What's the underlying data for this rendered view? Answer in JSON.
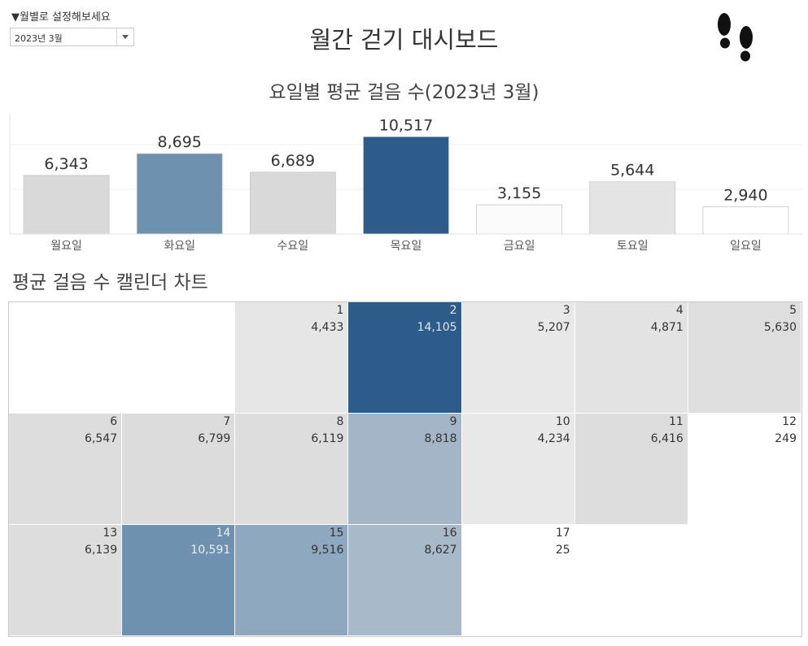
{
  "filter": {
    "label": "▼월별로 설정해보세요",
    "selected": "2023년 3월"
  },
  "dashboard": {
    "title": "월간 걷기 대시보드",
    "icon": "footprints-icon"
  },
  "chart_data": [
    {
      "type": "bar",
      "title": "요일별 평균 걸음 수(2023년 3월)",
      "categories": [
        "월요일",
        "화요일",
        "수요일",
        "목요일",
        "금요일",
        "토요일",
        "일요일"
      ],
      "values": [
        6343,
        8695,
        6689,
        10517,
        3155,
        5644,
        2940
      ],
      "value_labels": [
        "6,343",
        "8,695",
        "6,689",
        "10,517",
        "3,155",
        "5,644",
        "2,940"
      ],
      "colors": [
        "#d9d9d9",
        "#6f91b0",
        "#d9d9d9",
        "#2d5b8a",
        "#fbfbfb",
        "#e4e4e4",
        "#ffffff"
      ],
      "ylim": [
        0,
        13000
      ],
      "grid": true
    },
    {
      "type": "heatmap",
      "title": "평균 걸음 수 캘린더 차트",
      "weeks": [
        [
          null,
          null,
          {
            "day": "1",
            "value": "4,433",
            "color": "#e6e6e6",
            "text": "#333333"
          },
          {
            "day": "2",
            "value": "14,105",
            "color": "#2d5b8a",
            "text": "#dde6f0"
          },
          {
            "day": "3",
            "value": "5,207",
            "color": "#e8e8e8",
            "text": "#333333"
          },
          {
            "day": "4",
            "value": "4,871",
            "color": "#e3e3e3",
            "text": "#333333"
          },
          {
            "day": "5",
            "value": "5,630",
            "color": "#dedede",
            "text": "#333333"
          }
        ],
        [
          {
            "day": "6",
            "value": "6,547",
            "color": "#dddddd",
            "text": "#333333"
          },
          {
            "day": "7",
            "value": "6,799",
            "color": "#dcdcdc",
            "text": "#333333"
          },
          {
            "day": "8",
            "value": "6,119",
            "color": "#dddddd",
            "text": "#333333"
          },
          {
            "day": "9",
            "value": "8,818",
            "color": "#a3b5c6",
            "text": "#333333"
          },
          {
            "day": "10",
            "value": "4,234",
            "color": "#e8e8e8",
            "text": "#333333"
          },
          {
            "day": "11",
            "value": "6,416",
            "color": "#dddddd",
            "text": "#333333"
          },
          {
            "day": "12",
            "value": "249",
            "color": "#ffffff",
            "text": "#333333"
          }
        ],
        [
          {
            "day": "13",
            "value": "6,139",
            "color": "#dddddd",
            "text": "#333333"
          },
          {
            "day": "14",
            "value": "10,591",
            "color": "#6f91b0",
            "text": "#e8eef4"
          },
          {
            "day": "15",
            "value": "9,516",
            "color": "#8ea8bf",
            "text": "#333333"
          },
          {
            "day": "16",
            "value": "8,627",
            "color": "#a8b9c9",
            "text": "#333333"
          },
          {
            "day": "17",
            "value": "25",
            "color": "#ffffff",
            "text": "#333333"
          },
          null,
          null
        ]
      ]
    }
  ]
}
